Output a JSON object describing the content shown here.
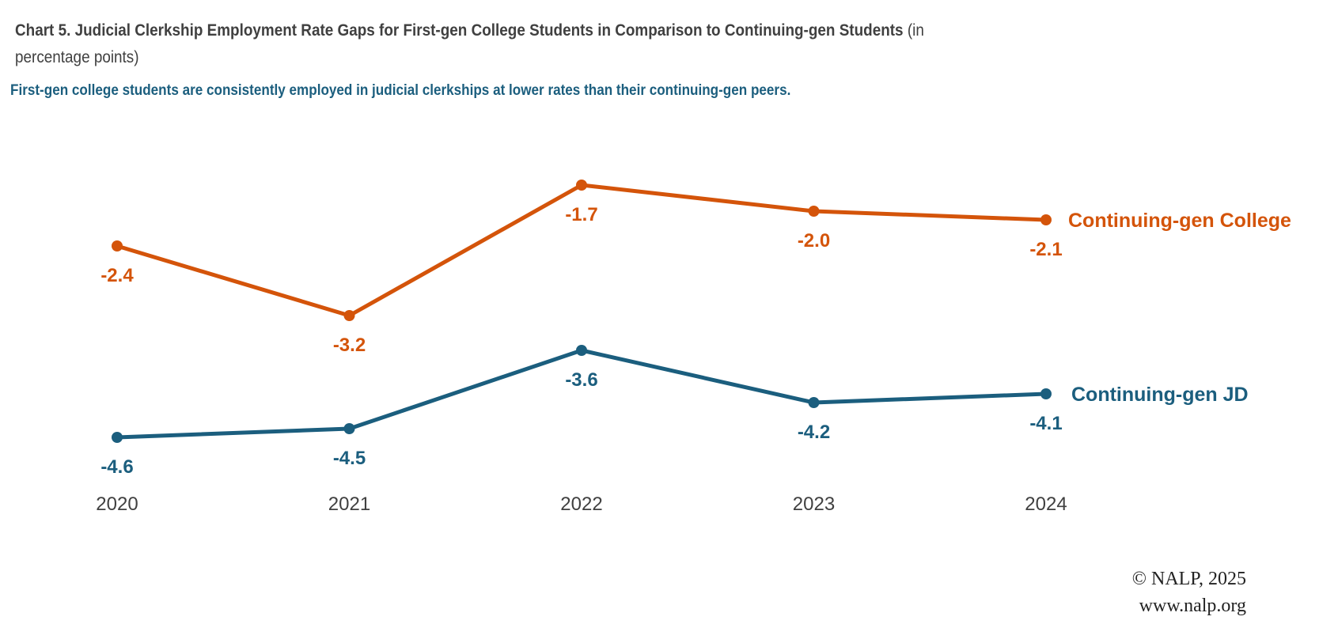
{
  "header": {
    "title": "Chart 5. Judicial Clerkship Employment Rate Gaps for First-gen College Students in Comparison to Continuing-gen Students",
    "title_unit": "(in percentage points)",
    "subtitle": "First-gen college students are consistently employed in judicial clerkships at lower rates than their continuing-gen peers."
  },
  "chart_data": {
    "type": "line",
    "categories": [
      "2020",
      "2021",
      "2022",
      "2023",
      "2024"
    ],
    "series": [
      {
        "name": "Continuing-gen College",
        "values": [
          -2.4,
          -3.2,
          -1.7,
          -2.0,
          -2.1
        ],
        "color": "#d4540a",
        "labels": [
          "-2.4",
          "-3.2",
          "-1.7",
          "-2.0",
          "-2.1"
        ]
      },
      {
        "name": "Continuing-gen JD",
        "values": [
          -4.6,
          -4.5,
          -3.6,
          -4.2,
          -4.1
        ],
        "color": "#1b5e7e",
        "labels": [
          "-4.6",
          "-4.5",
          "-3.6",
          "-4.2",
          "-4.1"
        ]
      }
    ],
    "grid": false,
    "legend": "inline-right",
    "axis_label_color": "#404040"
  },
  "footer": {
    "copyright": "© NALP, 2025",
    "url": "www.nalp.org"
  }
}
